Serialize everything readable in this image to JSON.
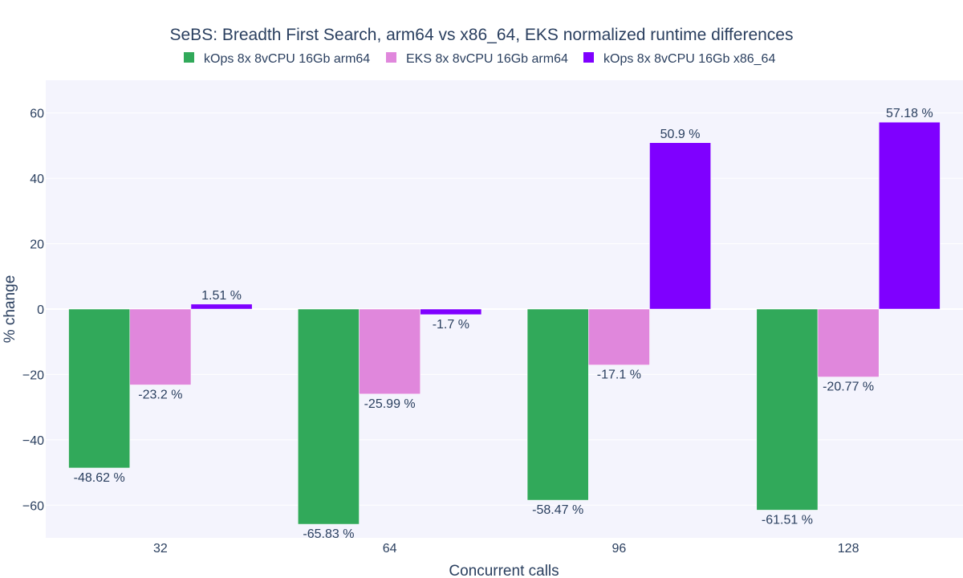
{
  "chart_data": {
    "type": "bar",
    "title": "SeBS: Breadth First Search, arm64 vs x86_64, EKS normalized runtime differences",
    "xlabel": "Concurrent calls",
    "ylabel": "% change",
    "categories": [
      "32",
      "64",
      "96",
      "128"
    ],
    "ylim": [
      -70,
      70
    ],
    "yticks": [
      60,
      40,
      20,
      0,
      -20,
      -40,
      -60
    ],
    "ytick_labels": [
      "60",
      "40",
      "20",
      "0",
      "−20",
      "−40",
      "−60"
    ],
    "grid": true,
    "legend_position": "top",
    "value_suffix": " %",
    "series": [
      {
        "name": "kOps 8x 8vCPU 16Gb arm64",
        "color": "#31a95a",
        "values": [
          -48.62,
          -65.83,
          -58.47,
          -61.51
        ],
        "labels": [
          "-48.62 %",
          "-65.83 %",
          "-58.47 %",
          "-61.51 %"
        ]
      },
      {
        "name": "EKS 8x 8vCPU 16Gb arm64",
        "color": "#e087dc",
        "values": [
          -23.2,
          -25.99,
          -17.1,
          -20.77
        ],
        "labels": [
          "-23.2 %",
          "-25.99 %",
          "-17.1 %",
          "-20.77 %"
        ]
      },
      {
        "name": "kOps 8x 8vCPU 16Gb x86_64",
        "color": "#7f00ff",
        "values": [
          1.51,
          -1.7,
          50.9,
          57.18
        ],
        "labels": [
          "1.51 %",
          "-1.7 %",
          "50.9 %",
          "57.18 %"
        ]
      }
    ],
    "plot_background": "#f4f4fd"
  }
}
